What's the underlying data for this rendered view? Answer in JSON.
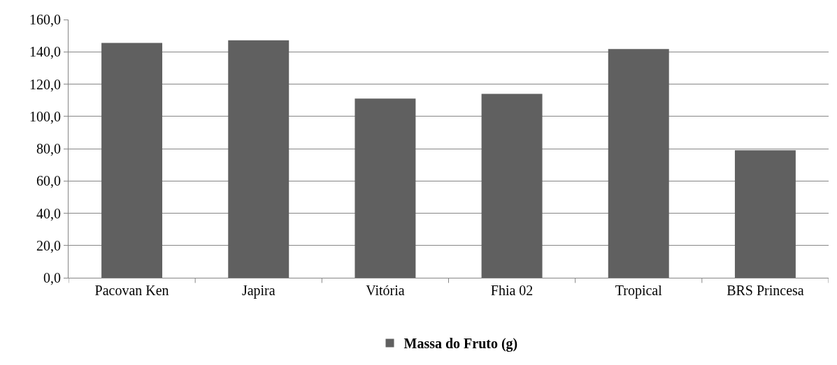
{
  "chart_data": {
    "type": "bar",
    "categories": [
      "Pacovan Ken",
      "Japira",
      "Vitória",
      "Fhia 02",
      "Tropical",
      "BRS Princesa"
    ],
    "series": [
      {
        "name": "Massa do Fruto (g)",
        "color": "#606060",
        "values": [
          145.5,
          147.1,
          111.0,
          113.9,
          141.7,
          79.0
        ]
      }
    ],
    "ylim": [
      0,
      160
    ],
    "yticks": [
      {
        "value": 0,
        "label": "0,0"
      },
      {
        "value": 20,
        "label": "20,0"
      },
      {
        "value": 40,
        "label": "40,0"
      },
      {
        "value": 60,
        "label": "60,0"
      },
      {
        "value": 80,
        "label": "80,0"
      },
      {
        "value": 100,
        "label": "100,0"
      },
      {
        "value": 120,
        "label": "120,0"
      },
      {
        "value": 140,
        "label": "140,0"
      },
      {
        "value": 160,
        "label": "160,0"
      }
    ],
    "grid": "y",
    "legend": "bottom"
  }
}
